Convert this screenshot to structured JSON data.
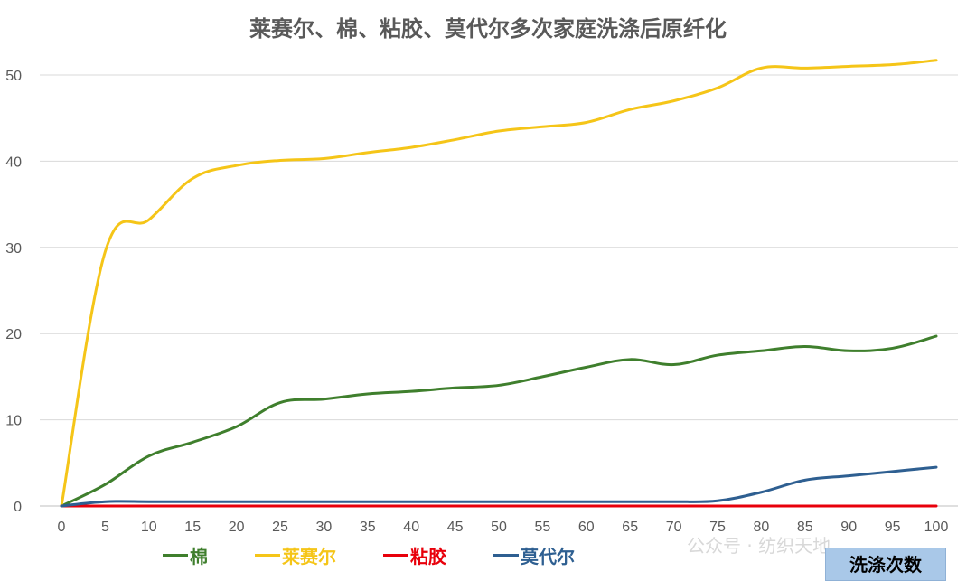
{
  "chart_data": {
    "type": "line",
    "title": "莱赛尔、棉、粘胶、莫代尔多次家庭洗涤后原纤化",
    "xlabel": "洗涤次数",
    "ylabel": "",
    "x": [
      0,
      5,
      10,
      15,
      20,
      25,
      30,
      35,
      40,
      45,
      50,
      55,
      60,
      65,
      70,
      75,
      80,
      85,
      90,
      95,
      100
    ],
    "xlim": [
      0,
      100
    ],
    "ylim": [
      0,
      55
    ],
    "yticks": [
      0,
      10,
      20,
      30,
      40,
      50
    ],
    "grid": true,
    "legend_position": "bottom",
    "series": [
      {
        "name": "棉",
        "color": "#3f7f2d",
        "values": [
          0,
          2.5,
          5.8,
          7.4,
          9.2,
          12,
          12.4,
          13,
          13.3,
          13.7,
          14,
          15,
          16.1,
          17,
          16.4,
          17.5,
          18,
          18.5,
          18,
          18.3,
          19.7
        ]
      },
      {
        "name": "莱赛尔",
        "color": "#f5c518",
        "values": [
          0,
          29.5,
          33.2,
          38,
          39.5,
          40.1,
          40.3,
          41,
          41.6,
          42.5,
          43.5,
          44,
          44.5,
          46,
          47,
          48.5,
          50.8,
          50.8,
          51,
          51.2,
          51.7
        ]
      },
      {
        "name": "粘胶",
        "color": "#e8000b",
        "values": [
          0,
          0,
          0,
          0,
          0,
          0,
          0,
          0,
          0,
          0,
          0,
          0,
          0,
          0,
          0,
          0,
          0,
          0,
          0,
          0,
          0
        ]
      },
      {
        "name": "莫代尔",
        "color": "#2e5f91",
        "values": [
          0,
          0.5,
          0.5,
          0.5,
          0.5,
          0.5,
          0.5,
          0.5,
          0.5,
          0.5,
          0.5,
          0.5,
          0.5,
          0.5,
          0.5,
          0.6,
          1.6,
          3,
          3.5,
          4,
          4.5
        ]
      }
    ]
  },
  "watermark": "公众号 · 纺织天地"
}
